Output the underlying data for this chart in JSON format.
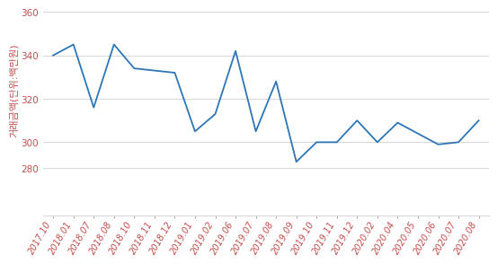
{
  "x_labels": [
    "2017.10",
    "2018.01",
    "2018.07",
    "2018.08",
    "2018.10",
    "2018.11",
    "2018.12",
    "2019.01",
    "2019.02",
    "2019.06",
    "2019.07",
    "2019.08",
    "2019.09",
    "2019.10",
    "2019.11",
    "2019.12",
    "2020.02",
    "2020.04",
    "2020.05",
    "2020.06",
    "2020.07",
    "2020.08"
  ],
  "y_values": [
    340,
    345,
    316,
    345,
    334,
    333,
    332,
    305,
    313,
    342,
    305,
    328,
    291,
    300,
    300,
    310,
    300,
    309,
    304,
    299,
    300,
    310
  ],
  "line_color": "#2e75b6",
  "line_width": 1.3,
  "ylim_plot": [
    288,
    360
  ],
  "ylim_full": [
    280,
    360
  ],
  "yticks": [
    300,
    320,
    340,
    360
  ],
  "ytick_280": 280,
  "ylabel": "거래금액(단위:백만원)",
  "grid_color": "#d9d9d9",
  "background_color": "#ffffff",
  "tick_color": "#c0504d",
  "tick_fontsize": 7.5,
  "ylabel_fontsize": 8,
  "xlabel_color": "#c0504d",
  "xlabel_fontsize": 7
}
